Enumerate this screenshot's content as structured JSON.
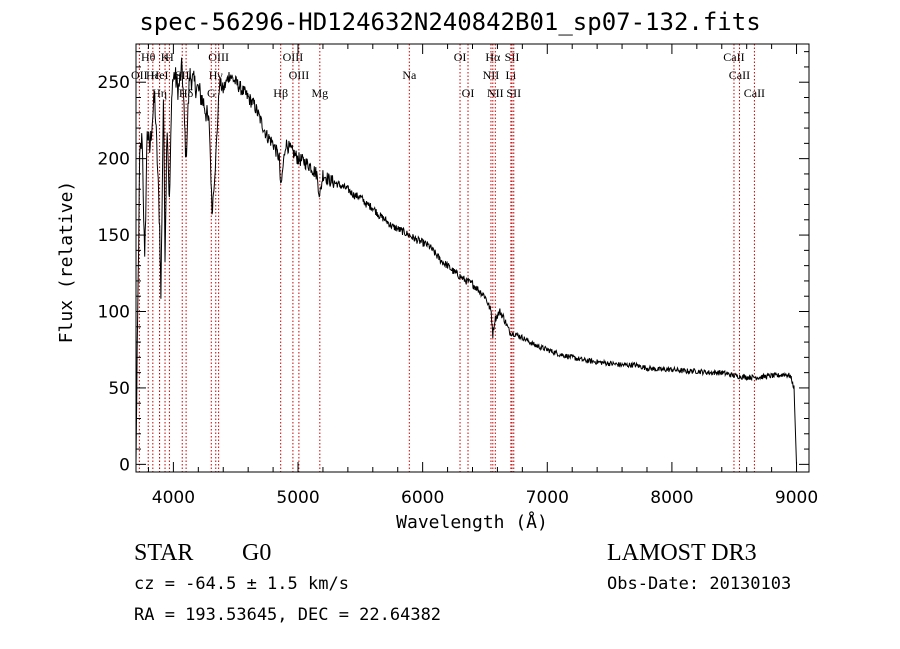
{
  "title": "spec-56296-HD124632N240842B01_sp07-132.fits",
  "chart_data": {
    "type": "line",
    "xlabel": "Wavelength (Å)",
    "ylabel": "Flux (relative)",
    "xlim": [
      3700,
      9100
    ],
    "ylim": [
      -5,
      275
    ],
    "xticks": [
      4000,
      5000,
      6000,
      7000,
      8000,
      9000
    ],
    "yticks": [
      0,
      50,
      100,
      150,
      200,
      250
    ],
    "series": [
      {
        "name": "spectrum",
        "x": [
          3700,
          3710,
          3730,
          3750,
          3770,
          3790,
          3810,
          3830,
          3850,
          3870,
          3890,
          3900,
          3920,
          3933,
          3950,
          3968,
          3990,
          4010,
          4040,
          4070,
          4101,
          4130,
          4160,
          4200,
          4250,
          4290,
          4310,
          4340,
          4370,
          4400,
          4450,
          4500,
          4550,
          4600,
          4650,
          4700,
          4750,
          4800,
          4850,
          4861,
          4900,
          4950,
          5000,
          5050,
          5100,
          5150,
          5175,
          5200,
          5250,
          5300,
          5350,
          5400,
          5450,
          5500,
          5550,
          5600,
          5650,
          5700,
          5750,
          5800,
          5850,
          5890,
          5950,
          6000,
          6050,
          6100,
          6150,
          6200,
          6250,
          6300,
          6350,
          6400,
          6450,
          6500,
          6550,
          6563,
          6580,
          6620,
          6650,
          6700,
          6750,
          6800,
          6900,
          7000,
          7100,
          7200,
          7300,
          7400,
          7500,
          7600,
          7700,
          7800,
          7900,
          8000,
          8100,
          8200,
          8300,
          8400,
          8500,
          8600,
          8700,
          8800,
          8850,
          8900,
          8950,
          8980,
          9000
        ],
        "values": [
          1,
          70,
          200,
          215,
          130,
          220,
          205,
          225,
          240,
          200,
          155,
          110,
          240,
          140,
          225,
          170,
          250,
          255,
          245,
          260,
          200,
          255,
          250,
          245,
          235,
          220,
          165,
          200,
          250,
          245,
          255,
          250,
          245,
          240,
          235,
          225,
          215,
          210,
          200,
          180,
          210,
          205,
          200,
          198,
          195,
          190,
          175,
          190,
          186,
          184,
          182,
          180,
          176,
          175,
          170,
          168,
          163,
          160,
          156,
          154,
          152,
          150,
          147,
          145,
          143,
          138,
          133,
          130,
          126,
          123,
          120,
          118,
          114,
          110,
          100,
          85,
          95,
          100,
          96,
          86,
          85,
          83,
          78,
          75,
          72,
          70,
          68,
          67,
          66,
          65,
          65,
          63,
          62,
          62,
          61,
          61,
          60,
          60,
          58,
          57,
          57,
          58,
          58,
          59,
          58,
          50,
          0
        ]
      }
    ],
    "line_markers": [
      {
        "label": "Hθ",
        "wave": 3798,
        "row": 0
      },
      {
        "label": "K",
        "wave": 3933,
        "row": 0
      },
      {
        "label": "H",
        "wave": 3968,
        "row": 0
      },
      {
        "label": "OIII",
        "wave": 4363,
        "row": 0
      },
      {
        "label": "OIII",
        "wave": 4959,
        "row": 0
      },
      {
        "label": "OI",
        "wave": 6300,
        "row": 0
      },
      {
        "label": "Hα",
        "wave": 6563,
        "row": 0
      },
      {
        "label": "SII",
        "wave": 6717,
        "row": 0
      },
      {
        "label": "CaII",
        "wave": 8498,
        "row": 0
      },
      {
        "label": "OII",
        "wave": 3727,
        "row": 1
      },
      {
        "label": "Hε",
        "wave": 3835,
        "row": 1
      },
      {
        "label": "HeI",
        "wave": 3889,
        "row": 1
      },
      {
        "label": "SII",
        "wave": 4071,
        "row": 1
      },
      {
        "label": "Hγ",
        "wave": 4340,
        "row": 1
      },
      {
        "label": "OIII",
        "wave": 5007,
        "row": 1
      },
      {
        "label": "Na",
        "wave": 5893,
        "row": 1
      },
      {
        "label": "NII",
        "wave": 6548,
        "row": 1
      },
      {
        "label": "Li",
        "wave": 6708,
        "row": 1
      },
      {
        "label": "CaII",
        "wave": 8542,
        "row": 1
      },
      {
        "label": "Hη",
        "wave": 3889,
        "row": 2
      },
      {
        "label": "Hδ",
        "wave": 4102,
        "row": 2
      },
      {
        "label": "G",
        "wave": 4304,
        "row": 2
      },
      {
        "label": "Hβ",
        "wave": 4861,
        "row": 2
      },
      {
        "label": "Mg",
        "wave": 5175,
        "row": 2
      },
      {
        "label": "OI",
        "wave": 6364,
        "row": 2
      },
      {
        "label": "NII",
        "wave": 6583,
        "row": 2
      },
      {
        "label": "SII",
        "wave": 6731,
        "row": 2
      },
      {
        "label": "CaII",
        "wave": 8662,
        "row": 2
      }
    ]
  },
  "info": {
    "obj_type": "STAR",
    "subclass": "G0",
    "survey": "LAMOST DR3",
    "cz": "cz = -64.5 ± 1.5 km/s",
    "obs_date": "Obs-Date: 20130103",
    "radec": "RA = 193.53645, DEC =  22.64382"
  },
  "colors": {
    "spectrum": "#000000",
    "marker_line": "#cc0000",
    "axis": "#000000"
  }
}
